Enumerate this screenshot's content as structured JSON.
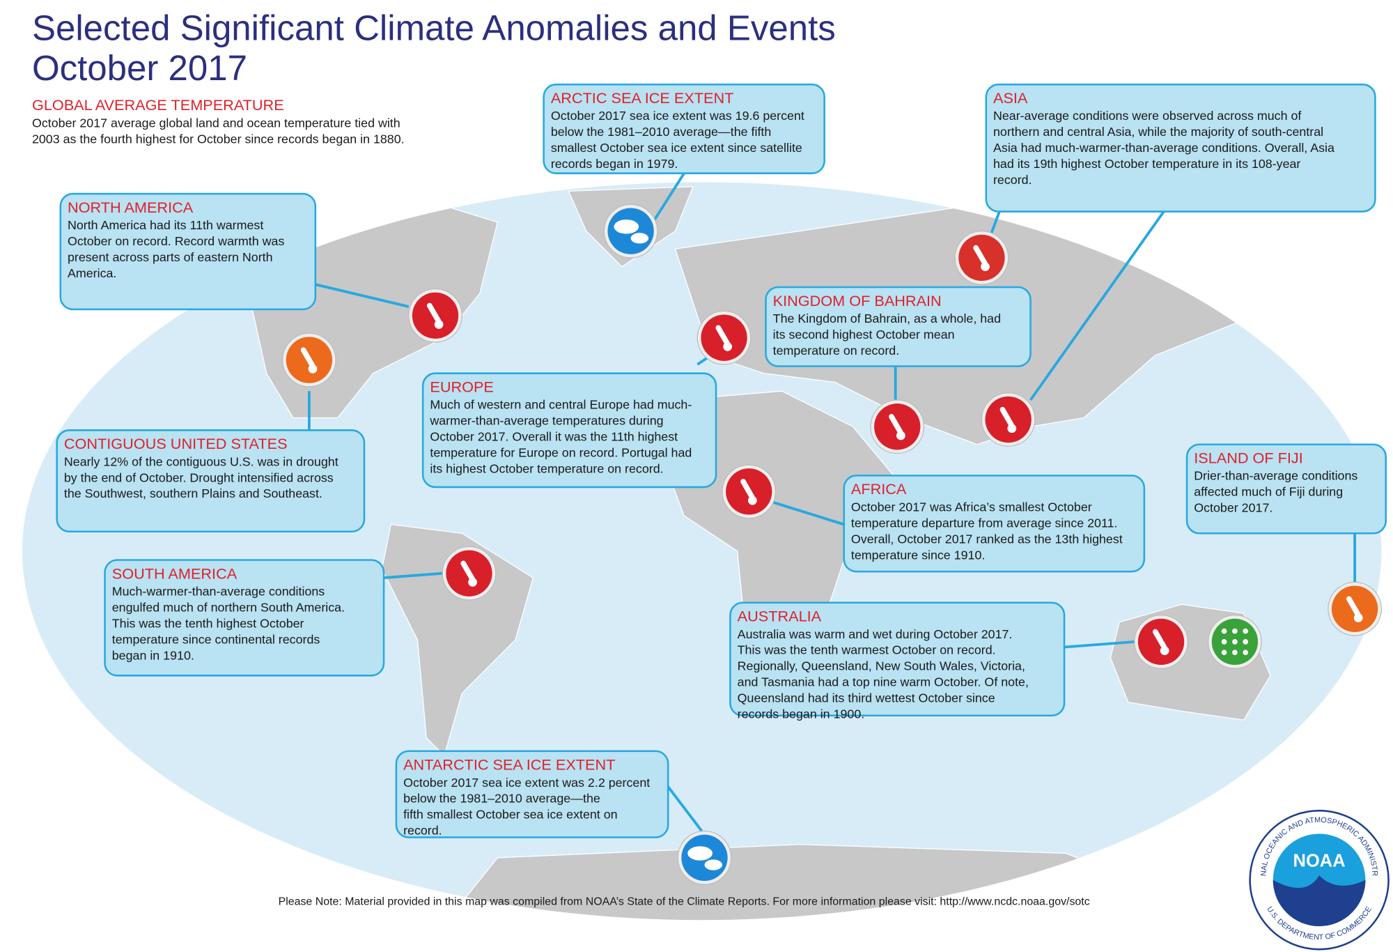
{
  "header": {
    "title": "Selected Significant Climate Anomalies and Events",
    "subtitle": "October 2017"
  },
  "global": {
    "heading": "GLOBAL AVERAGE TEMPERATURE",
    "lines": [
      "October 2017 average global land and ocean temperature tied with",
      "2003 as the fourth highest for October since records began in 1880."
    ]
  },
  "callouts": [
    {
      "heading": "ARCTIC SEA ICE EXTENT",
      "lines": [
        "October 2017 sea ice extent was 19.6 percent",
        "below the 1981–2010 average—the fifth",
        "smallest October sea ice extent since satellite",
        "records began in 1979."
      ]
    },
    {
      "heading": "ASIA",
      "lines": [
        "Near-average conditions were observed across much of",
        "northern and central Asia, while the majority of south-central",
        "Asia had much-warmer-than-average conditions. Overall, Asia",
        "had its 19th highest October temperature in its 108-year",
        "record."
      ]
    },
    {
      "heading": "NORTH AMERICA",
      "lines": [
        "North America had its 11th warmest",
        "October on record. Record warmth was",
        "present across parts of eastern North",
        "America."
      ]
    },
    {
      "heading": "KINGDOM OF BAHRAIN",
      "lines": [
        "The Kingdom of Bahrain, as a whole, had",
        "its second highest October mean",
        "temperature on record."
      ]
    },
    {
      "heading": "EUROPE",
      "lines": [
        "Much of western and central Europe had much-",
        "warmer-than-average temperatures during",
        "October 2017. Overall it was the 11th highest",
        "temperature for Europe on record. Portugal had",
        "its highest October temperature on record."
      ]
    },
    {
      "heading": "CONTIGUOUS UNITED STATES",
      "lines": [
        "Nearly 12% of the contiguous U.S. was in drought",
        "by the end of October. Drought intensified across",
        "the Southwest, southern Plains and Southeast."
      ]
    },
    {
      "heading": "AFRICA",
      "lines": [
        "October 2017 was Africa’s smallest October",
        "temperature departure  from average since 2011.",
        "Overall, October 2017 ranked as the 13th highest",
        "temperature since 1910."
      ]
    },
    {
      "heading": "ISLAND OF FIJI",
      "lines": [
        "Drier-than-average conditions",
        "affected much of Fiji during",
        "October 2017."
      ]
    },
    {
      "heading": "SOUTH AMERICA",
      "lines": [
        "Much-warmer-than-average conditions",
        "engulfed much of northern South America.",
        "This was the tenth highest October",
        "temperature since continental records",
        "began in 1910."
      ]
    },
    {
      "heading": "AUSTRALIA",
      "lines": [
        "Australia was warm and wet during October 2017.",
        "This was the tenth warmest October on record.",
        "Regionally, Queensland, New South Wales, Victoria,",
        "and Tasmania had a top nine warm October. Of note,",
        "Queensland had its third wettest October since",
        "records began in 1900."
      ]
    },
    {
      "heading": "ANTARCTIC SEA ICE EXTENT",
      "lines": [
        "October 2017 sea ice extent was 2.2 percent",
        "below the 1981–2010 average—the",
        "fifth smallest October sea ice extent on",
        "record."
      ]
    }
  ],
  "footer": {
    "note": "Please Note: Material provided in this map was compiled from NOAA’s State of the Climate Reports. For more information please visit: http://www.ncdc.noaa.gov/sotc"
  },
  "logo": {
    "center": "NOAA",
    "top": "NATIONAL OCEANIC AND ATMOSPHERIC ADMINISTRATION",
    "bottom": "U.S. DEPARTMENT OF COMMERCE"
  }
}
